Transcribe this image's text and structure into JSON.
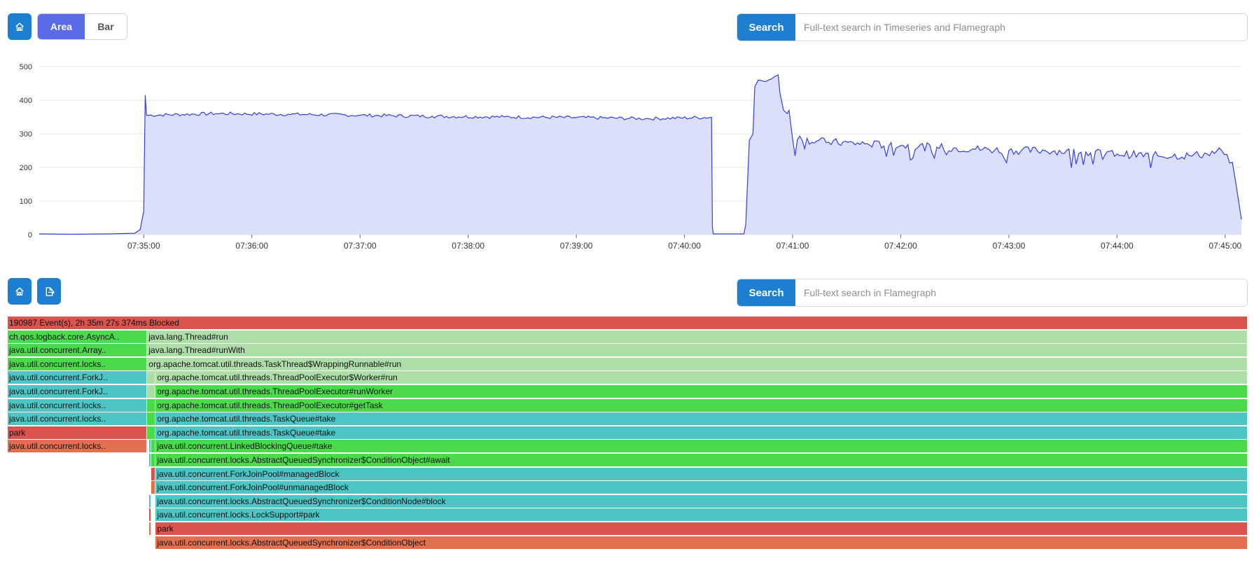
{
  "toolbar": {
    "home_icon": "home-icon",
    "view_toggle": {
      "area_label": "Area",
      "bar_label": "Bar",
      "selected": "Area"
    },
    "search": {
      "button_label": "Search",
      "placeholder": "Full-text search in Timeseries and Flamegraph"
    }
  },
  "colors": {
    "accent": "#1c7fd0",
    "toggle_active": "#5b6ae6",
    "area_fill": "#dcdffa",
    "area_line": "#3440e0",
    "red": "#d9534f",
    "green": "#4cd94c",
    "teal": "#4dc5c5",
    "orange": "#e07050",
    "light_green": "#aedea8"
  },
  "chart_data": {
    "type": "area",
    "ylim": [
      0,
      500
    ],
    "yticks": [
      "0",
      "100",
      "200",
      "300",
      "400",
      "500"
    ],
    "xticks": [
      "07:35:00",
      "07:36:00",
      "07:37:00",
      "07:38:00",
      "07:39:00",
      "07:40:00",
      "07:41:00",
      "07:42:00",
      "07:43:00",
      "07:44:00",
      "07:45:00"
    ],
    "x_start_seconds": -58,
    "x_end_seconds": 609,
    "series": [
      {
        "points": [
          [
            -58,
            2
          ],
          [
            -40,
            1
          ],
          [
            -20,
            2
          ],
          [
            -5,
            4
          ],
          [
            -2,
            15
          ],
          [
            0,
            70
          ],
          [
            0.8,
            415
          ],
          [
            1.5,
            355
          ],
          [
            40,
            360
          ],
          [
            80,
            358
          ],
          [
            120,
            355
          ],
          [
            160,
            352
          ],
          [
            200,
            350
          ],
          [
            240,
            348
          ],
          [
            280,
            345
          ],
          [
            315,
            349
          ],
          [
            315.5,
            20
          ],
          [
            316,
            2
          ],
          [
            333,
            2
          ],
          [
            334,
            30
          ],
          [
            336,
            280
          ],
          [
            338,
            300
          ],
          [
            339,
            440
          ],
          [
            341,
            460
          ],
          [
            345,
            455
          ],
          [
            350,
            470
          ],
          [
            352,
            475
          ],
          [
            353,
            420
          ],
          [
            355,
            370
          ],
          [
            357,
            360
          ],
          [
            358,
            370
          ],
          [
            360,
            285
          ],
          [
            380,
            275
          ],
          [
            400,
            270
          ],
          [
            420,
            265
          ],
          [
            440,
            260
          ],
          [
            460,
            255
          ],
          [
            480,
            250
          ],
          [
            500,
            250
          ],
          [
            520,
            245
          ],
          [
            540,
            240
          ],
          [
            560,
            235
          ],
          [
            580,
            235
          ],
          [
            590,
            240
          ],
          [
            598,
            250
          ],
          [
            604,
            215
          ],
          [
            606,
            150
          ],
          [
            609,
            45
          ]
        ]
      }
    ]
  },
  "flamegraph_toolbar": {
    "home_icon": "home-icon",
    "export_icon": "export-icon",
    "search": {
      "button_label": "Search",
      "placeholder": "Full-text search in Flamegraph"
    }
  },
  "flamegraph": {
    "total_samples": 190987,
    "frames": [
      {
        "label": "190987 Event(s), 2h 35m 27s 374ms  Blocked",
        "depth": 0,
        "start": 0,
        "end": 190987,
        "color": "red"
      },
      {
        "label": "ch.qos.logback.core.AsyncA..",
        "depth": 1,
        "start": 0,
        "end": 21500,
        "color": "green"
      },
      {
        "label": "java.lang.Thread#run",
        "depth": 1,
        "start": 21500,
        "end": 190987,
        "color": "light_green"
      },
      {
        "label": "java.util.concurrent.Array..",
        "depth": 2,
        "start": 0,
        "end": 21500,
        "color": "green"
      },
      {
        "label": "java.lang.Thread#runWith",
        "depth": 2,
        "start": 21500,
        "end": 190987,
        "color": "light_green"
      },
      {
        "label": "java.util.concurrent.locks..",
        "depth": 3,
        "start": 0,
        "end": 21500,
        "color": "green"
      },
      {
        "label": "org.apache.tomcat.util.threads.TaskThread$WrappingRunnable#run",
        "depth": 3,
        "start": 21500,
        "end": 190987,
        "color": "light_green"
      },
      {
        "label": "java.util.concurrent.ForkJ..",
        "depth": 4,
        "start": 0,
        "end": 21500,
        "color": "teal"
      },
      {
        "label": "",
        "depth": 4,
        "start": 21500,
        "end": 22800,
        "color": "light_green"
      },
      {
        "label": "org.apache.tomcat.util.threads.ThreadPoolExecutor$Worker#run",
        "depth": 4,
        "start": 22800,
        "end": 190987,
        "color": "light_green"
      },
      {
        "label": "java.util.concurrent.ForkJ..",
        "depth": 5,
        "start": 0,
        "end": 21500,
        "color": "teal"
      },
      {
        "label": "",
        "depth": 5,
        "start": 21500,
        "end": 22800,
        "color": "light_green"
      },
      {
        "label": "org.apache.tomcat.util.threads.ThreadPoolExecutor#runWorker",
        "depth": 5,
        "start": 22800,
        "end": 190987,
        "color": "green"
      },
      {
        "label": "java.util.concurrent.locks..",
        "depth": 6,
        "start": 0,
        "end": 21500,
        "color": "teal"
      },
      {
        "label": "",
        "depth": 6,
        "start": 21500,
        "end": 22800,
        "color": "green"
      },
      {
        "label": "org.apache.tomcat.util.threads.ThreadPoolExecutor#getTask",
        "depth": 6,
        "start": 22800,
        "end": 190987,
        "color": "green"
      },
      {
        "label": "java.util.concurrent.locks..",
        "depth": 7,
        "start": 0,
        "end": 21500,
        "color": "teal"
      },
      {
        "label": "",
        "depth": 7,
        "start": 21500,
        "end": 22800,
        "color": "green"
      },
      {
        "label": "org.apache.tomcat.util.threads.TaskQueue#take",
        "depth": 7,
        "start": 22800,
        "end": 190987,
        "color": "teal"
      },
      {
        "label": "park",
        "depth": 8,
        "start": 0,
        "end": 21500,
        "color": "red"
      },
      {
        "label": "",
        "depth": 8,
        "start": 21500,
        "end": 22800,
        "color": "green"
      },
      {
        "label": "org.apache.tomcat.util.threads.TaskQueue#take",
        "depth": 8,
        "start": 22800,
        "end": 190987,
        "color": "teal"
      },
      {
        "label": "java.util.concurrent.locks..",
        "depth": 9,
        "start": 0,
        "end": 21500,
        "color": "orange"
      },
      {
        "label": "",
        "depth": 9,
        "start": 21750,
        "end": 22150,
        "color": "teal"
      },
      {
        "label": "",
        "depth": 9,
        "start": 22150,
        "end": 22800,
        "color": "green"
      },
      {
        "label": "java.util.concurrent.LinkedBlockingQueue#take",
        "depth": 9,
        "start": 22800,
        "end": 190987,
        "color": "green"
      },
      {
        "label": "",
        "depth": 10,
        "start": 21750,
        "end": 22150,
        "color": "teal"
      },
      {
        "label": "",
        "depth": 10,
        "start": 22150,
        "end": 22800,
        "color": "green"
      },
      {
        "label": "java.util.concurrent.locks.AbstractQueuedSynchronizer$ConditionObject#await",
        "depth": 10,
        "start": 22800,
        "end": 190987,
        "color": "green"
      },
      {
        "label": "",
        "depth": 11,
        "start": 22150,
        "end": 22800,
        "color": "red"
      },
      {
        "label": "java.util.concurrent.ForkJoinPool#managedBlock",
        "depth": 11,
        "start": 22800,
        "end": 190987,
        "color": "teal"
      },
      {
        "label": "",
        "depth": 12,
        "start": 22150,
        "end": 22800,
        "color": "orange"
      },
      {
        "label": "java.util.concurrent.ForkJoinPool#unmanagedBlock",
        "depth": 12,
        "start": 22800,
        "end": 190987,
        "color": "teal"
      },
      {
        "label": "",
        "depth": 13,
        "start": 21750,
        "end": 22150,
        "color": "teal"
      },
      {
        "label": "java.util.concurrent.locks.AbstractQueuedSynchronizer$ConditionNode#block",
        "depth": 13,
        "start": 22800,
        "end": 190987,
        "color": "teal"
      },
      {
        "label": "",
        "depth": 14,
        "start": 21750,
        "end": 22150,
        "color": "red"
      },
      {
        "label": "java.util.concurrent.locks.LockSupport#park",
        "depth": 14,
        "start": 22800,
        "end": 190987,
        "color": "teal"
      },
      {
        "label": "",
        "depth": 15,
        "start": 21750,
        "end": 22150,
        "color": "orange"
      },
      {
        "label": "park",
        "depth": 15,
        "start": 22800,
        "end": 190987,
        "color": "red"
      },
      {
        "label": "java.util.concurrent.locks.AbstractQueuedSynchronizer$ConditionObject",
        "depth": 16,
        "start": 22800,
        "end": 190987,
        "color": "orange"
      }
    ]
  }
}
